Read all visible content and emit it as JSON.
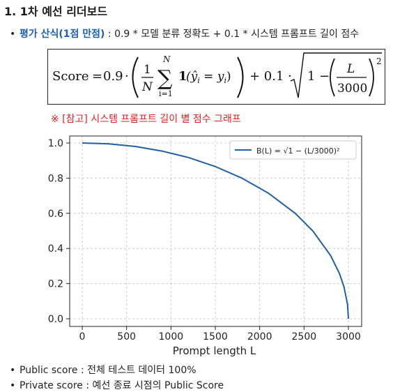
{
  "heading": "1. 1차 예선 리더보드",
  "eval": {
    "bullet": "•",
    "label": "평가 산식(1점 만점)",
    "text": " : 0.9 * 모델 분류 정확도 + 0.1 * 시스템 프롬프트 길이 점수"
  },
  "formula": {
    "lhs": "Score",
    "equals": "=",
    "coef1": "0.9",
    "one": "1",
    "N": "N",
    "sum_top": "N",
    "sum_bottom": "i=1",
    "indicator": "1",
    "inner": "(ŷ",
    "inner_sub": "i",
    "inner_eq": " = y",
    "inner_sub2": "i",
    "inner_close": ")",
    "plus": "+ 0.1 ·",
    "root_one": "1 −",
    "L": "L",
    "denom": "3000",
    "exp": "2"
  },
  "note": "※ [참고] 시스템 프롬프트 길이 별 점수 그래프",
  "chart_data": {
    "type": "line",
    "function": "B(L) = sqrt(1 - (L/3000)^2)",
    "legend": "B(L) = √1 − (L/3000)²",
    "legend_position": "top-right",
    "xlabel": "Prompt length L",
    "ylabel": "",
    "xlim": [
      0,
      3000
    ],
    "ylim": [
      0.0,
      1.0
    ],
    "xticks": [
      "0",
      "500",
      "1000",
      "1500",
      "2000",
      "2500",
      "3000"
    ],
    "yticks": [
      "0.0",
      "0.2",
      "0.4",
      "0.6",
      "0.8",
      "1.0"
    ],
    "grid": true,
    "line_color": "#1f5fa8",
    "series": [
      {
        "x": [
          0,
          300,
          600,
          900,
          1200,
          1500,
          1800,
          2100,
          2400,
          2600,
          2800,
          2900,
          2950,
          2990,
          3000
        ],
        "y": [
          1.0,
          0.995,
          0.98,
          0.954,
          0.917,
          0.866,
          0.8,
          0.714,
          0.6,
          0.499,
          0.359,
          0.256,
          0.182,
          0.082,
          0.0
        ]
      }
    ]
  },
  "footer": [
    {
      "bullet": "•",
      "text": "Public score : 전체 테스트 데이터 100%"
    },
    {
      "bullet": "•",
      "text": "Private score : 예선 종료 시점의 Public Score"
    }
  ]
}
